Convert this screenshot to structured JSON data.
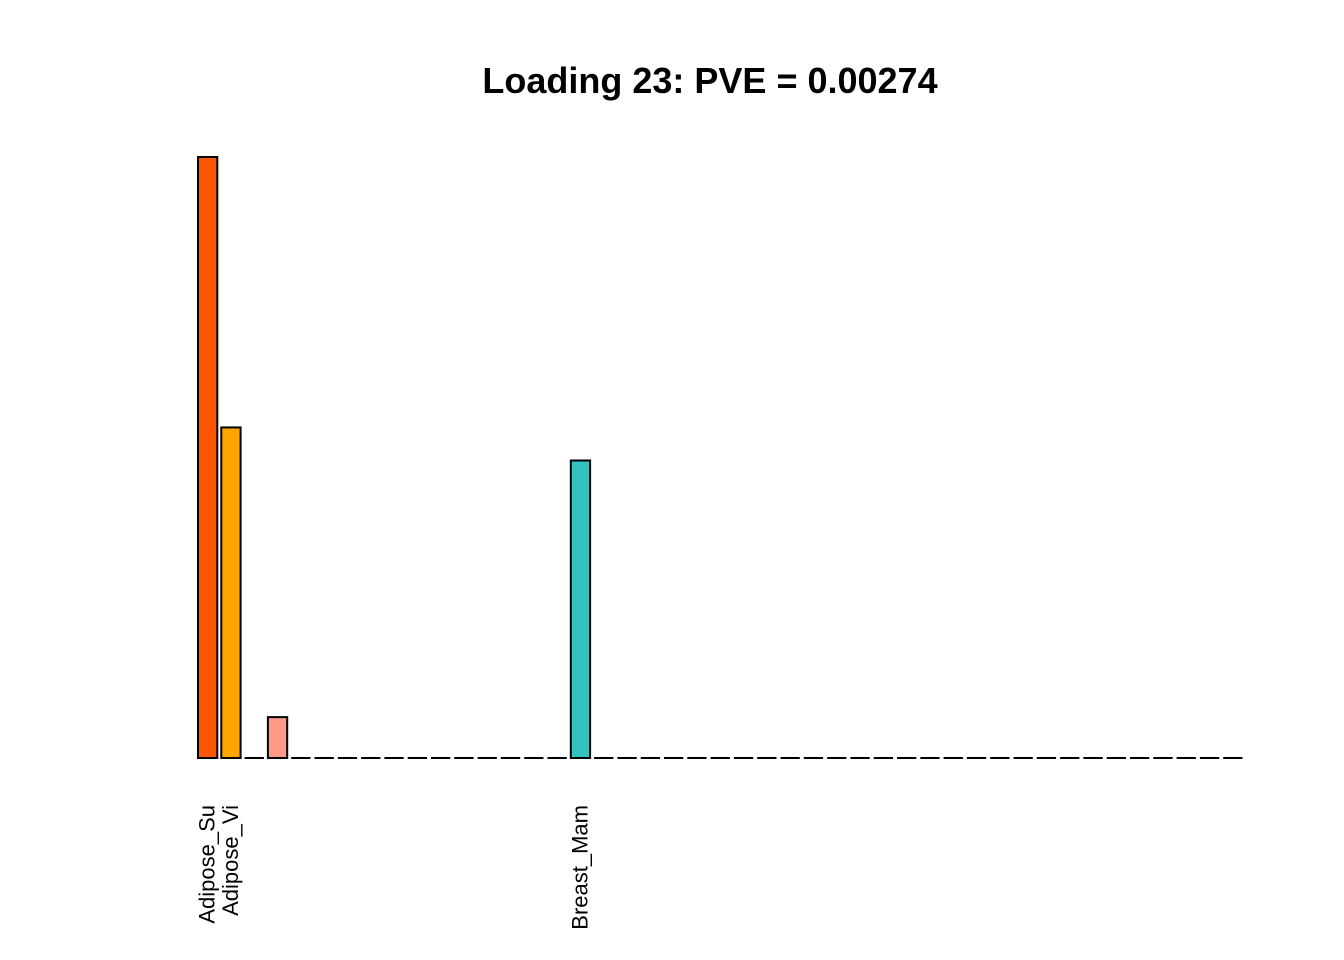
{
  "chart_data": {
    "type": "bar",
    "title": "Loading 23: PVE = 0.00274",
    "xlabel": "",
    "ylabel": "",
    "ylim": [
      0,
      1
    ],
    "grid": false,
    "legend": "none",
    "categories": [
      "Adipose_Su",
      "Adipose_Vi",
      "",
      "",
      "",
      "",
      "",
      "",
      "",
      "",
      "",
      "",
      "",
      "",
      "",
      "",
      "Breast_Mam",
      "",
      "",
      "",
      "",
      "",
      "",
      "",
      "",
      "",
      "",
      "",
      "",
      "",
      "",
      "",
      "",
      "",
      "",
      "",
      "",
      "",
      "",
      "",
      "",
      "",
      "",
      "",
      ""
    ],
    "values": [
      1.0,
      0.55,
      0,
      0.068,
      0,
      0,
      0,
      0,
      0,
      0,
      0,
      0,
      0,
      0,
      0,
      0,
      0.495,
      0,
      0,
      0,
      0,
      0,
      0,
      0,
      0,
      0,
      0,
      0,
      0,
      0,
      0,
      0,
      0,
      0,
      0,
      0,
      0,
      0,
      0,
      0,
      0,
      0,
      0,
      0,
      0
    ],
    "colors": [
      "#FF5500",
      "#FFA500",
      "#FFFFFF",
      "#FF9988",
      "#FFFFFF",
      "#FFFFFF",
      "#FFFFFF",
      "#FFFFFF",
      "#FFFFFF",
      "#FFFFFF",
      "#FFFFFF",
      "#FFFFFF",
      "#FFFFFF",
      "#FFFFFF",
      "#FFFFFF",
      "#FFFFFF",
      "#33C3BF",
      "#FFFFFF",
      "#FFFFFF",
      "#FFFFFF",
      "#FFFFFF",
      "#FFFFFF",
      "#FFFFFF",
      "#FFFFFF",
      "#FFFFFF",
      "#FFFFFF",
      "#FFFFFF",
      "#FFFFFF",
      "#FFFFFF",
      "#FFFFFF",
      "#FFFFFF",
      "#FFFFFF",
      "#FFFFFF",
      "#FFFFFF",
      "#FFFFFF",
      "#FFFFFF",
      "#FFFFFF",
      "#FFFFFF",
      "#FFFFFF",
      "#FFFFFF",
      "#FFFFFF",
      "#FFFFFF",
      "#FFFFFF",
      "#FFFFFF",
      "#FFFFFF"
    ],
    "bar_border_color": "#000000"
  }
}
